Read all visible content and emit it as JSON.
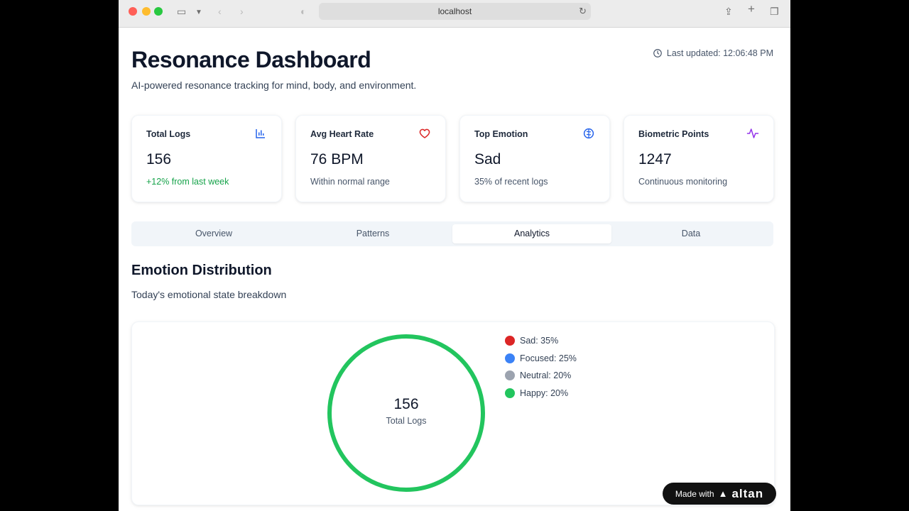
{
  "browser": {
    "url": "localhost"
  },
  "header": {
    "title": "Resonance Dashboard",
    "subtitle": "AI-powered resonance tracking for mind, body, and environment.",
    "last_updated": "Last updated: 12:06:48 PM"
  },
  "stats": [
    {
      "label": "Total Logs",
      "value": "156",
      "note": "+12% from last week",
      "icon": "bar-chart-icon",
      "color": "#2563eb"
    },
    {
      "label": "Avg Heart Rate",
      "value": "76 BPM",
      "note": "Within normal range",
      "icon": "heart-icon",
      "color": "#dc2626"
    },
    {
      "label": "Top Emotion",
      "value": "Sad",
      "note": "35% of recent logs",
      "icon": "brain-icon",
      "color": "#2563eb"
    },
    {
      "label": "Biometric Points",
      "value": "1247",
      "note": "Continuous monitoring",
      "icon": "activity-icon",
      "color": "#9333ea"
    }
  ],
  "tabs": [
    {
      "label": "Overview"
    },
    {
      "label": "Patterns"
    },
    {
      "label": "Analytics",
      "active": true
    },
    {
      "label": "Data"
    }
  ],
  "section": {
    "title": "Emotion Distribution",
    "subtitle": "Today's emotional state breakdown"
  },
  "chart_data": {
    "type": "pie",
    "categories": [
      "Sad",
      "Focused",
      "Neutral",
      "Happy"
    ],
    "values": [
      35,
      25,
      20,
      20
    ],
    "colors": [
      "#dc2626",
      "#3b82f6",
      "#9ca3af",
      "#22c55e"
    ],
    "legend": [
      "Sad: 35%",
      "Focused: 25%",
      "Neutral: 20%",
      "Happy: 20%"
    ],
    "legend_position": "right",
    "center_value": "156",
    "center_label": "Total Logs"
  },
  "badge": {
    "text": "Made with",
    "brand": "altan"
  }
}
